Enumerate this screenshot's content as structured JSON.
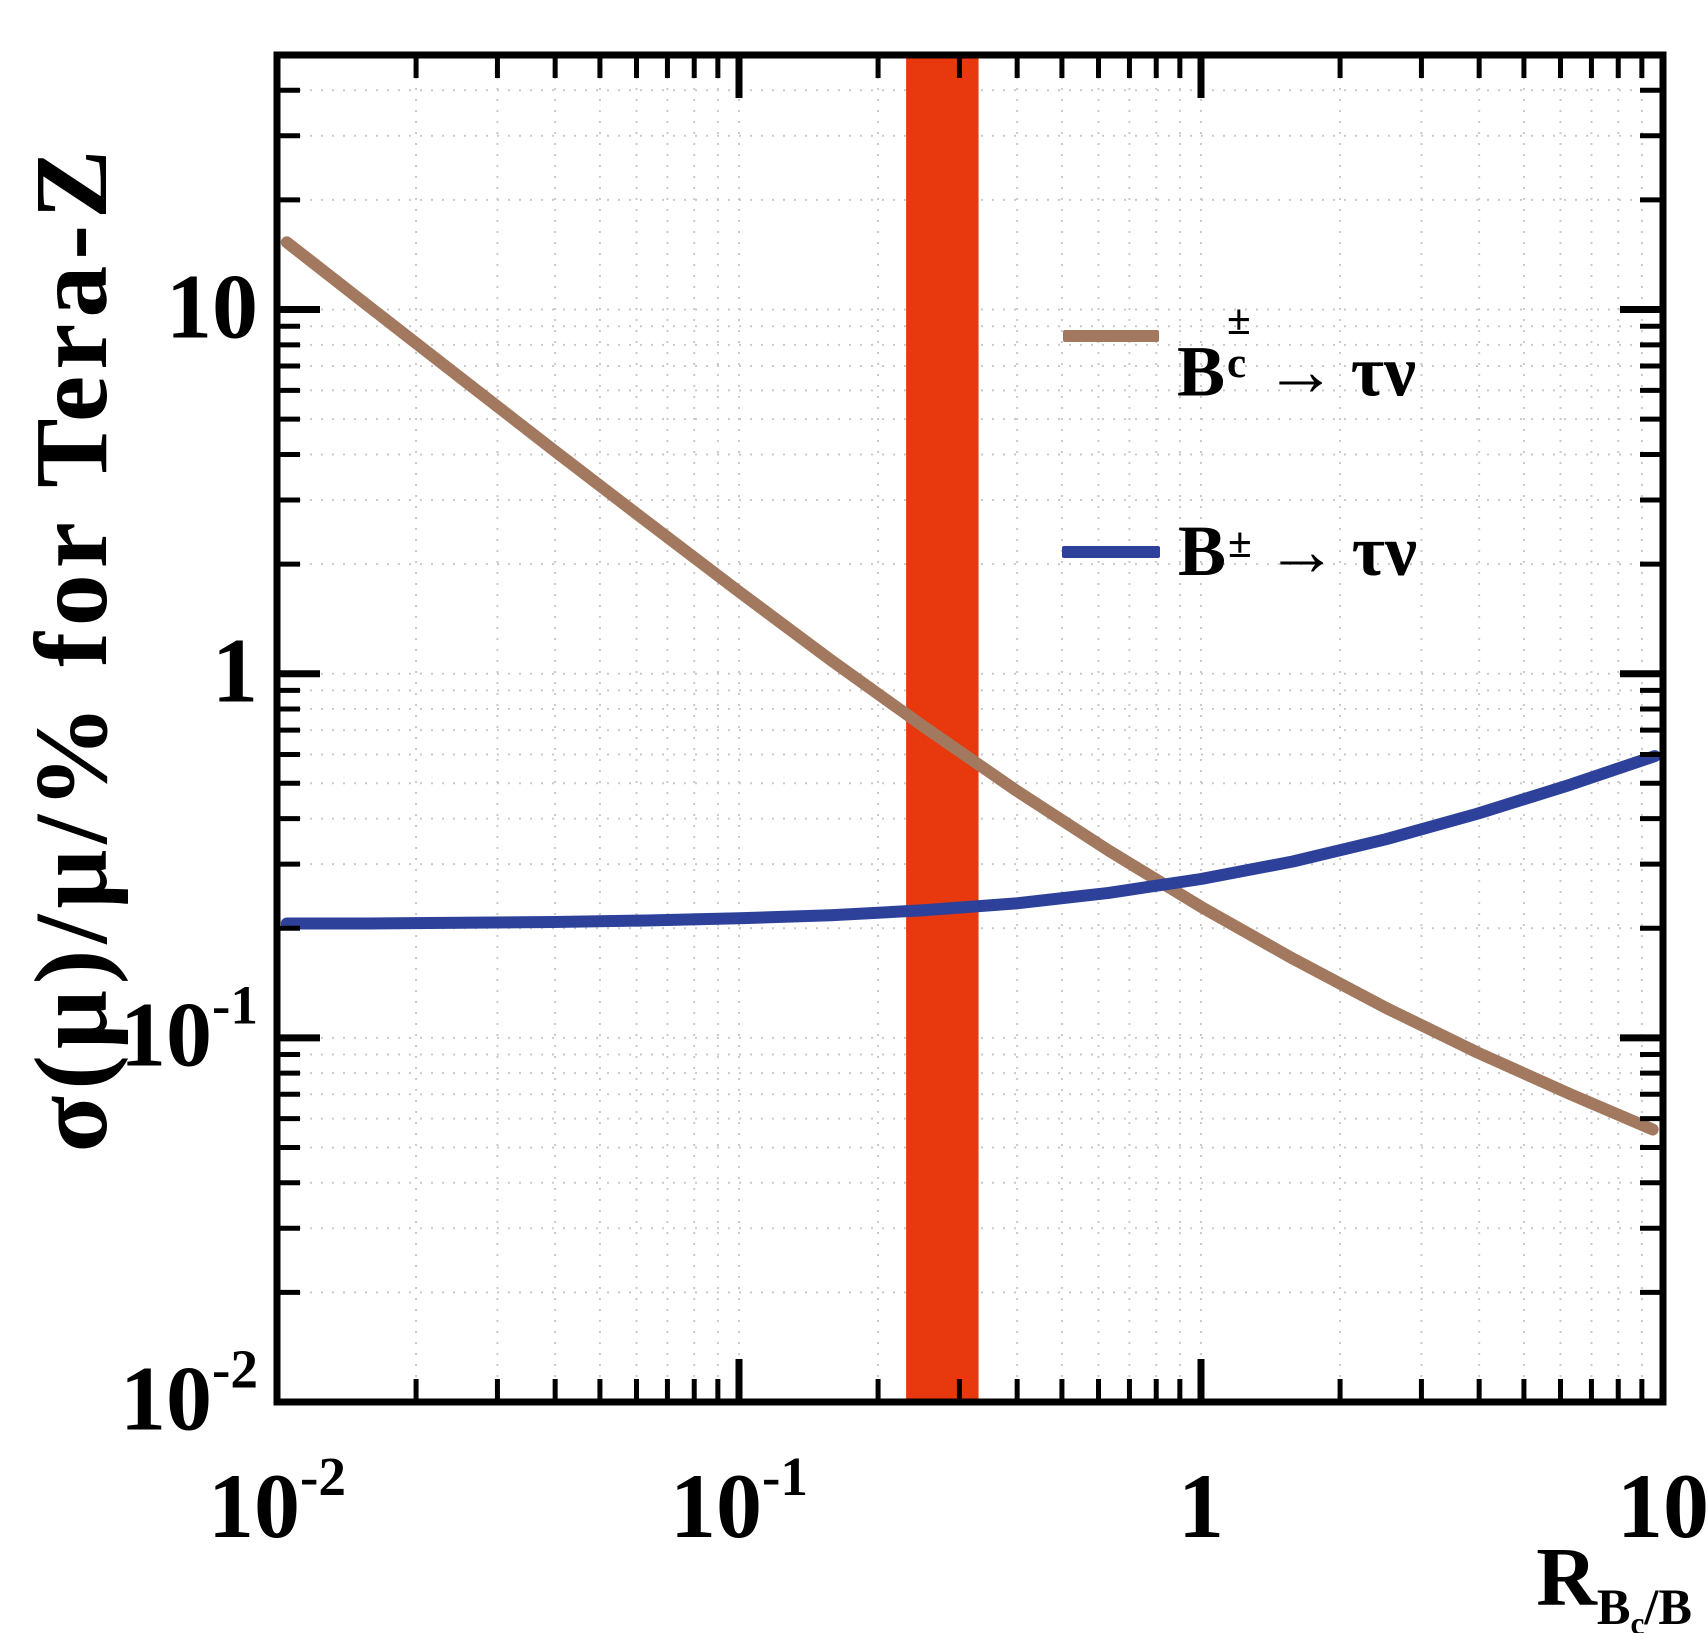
{
  "figure": {
    "background": "#ffffff",
    "frame_color": "#000000",
    "grid_color": "#c9c9c9",
    "text_color": "#000000"
  },
  "chart_data": {
    "type": "line",
    "title": "",
    "ylabel": "σ(μ)/μ/% for Tera-Z",
    "xlabel": {
      "main": "R",
      "sub": "B",
      "subsub": "c",
      "subpost": "/B"
    },
    "axes": {
      "x": {
        "scale": "log",
        "min": 0.01,
        "max": 10,
        "ticks": [
          {
            "value": 0.01,
            "base": "10",
            "exp": "-2"
          },
          {
            "value": 0.1,
            "base": "10",
            "exp": "-1"
          },
          {
            "value": 1,
            "base": "1",
            "exp": ""
          },
          {
            "value": 10,
            "base": "10",
            "exp": ""
          }
        ]
      },
      "y": {
        "scale": "log",
        "min": 0.01,
        "max": 50,
        "ticks": [
          {
            "value": 0.01,
            "base": "10",
            "exp": "-2"
          },
          {
            "value": 0.1,
            "base": "10",
            "exp": "-1"
          },
          {
            "value": 1,
            "base": "1",
            "exp": ""
          },
          {
            "value": 10,
            "base": "10",
            "exp": ""
          }
        ]
      }
    },
    "grid": {
      "on": true,
      "style": "dotted",
      "at": "all-log-ticks"
    },
    "band": {
      "x_min": 0.23,
      "x_max": 0.33,
      "color": "#e8380d"
    },
    "series": [
      {
        "name": "Bc-to-taunu",
        "color": "#a2795f",
        "line_width": 12,
        "x": [
          0.0105,
          0.0158,
          0.0251,
          0.0398,
          0.0631,
          0.1,
          0.158,
          0.251,
          0.398,
          0.631,
          1.0,
          1.58,
          2.51,
          3.98,
          6.31,
          9.5
        ],
        "y": [
          15.3,
          10.2,
          6.46,
          4.1,
          2.62,
          1.68,
          1.09,
          0.716,
          0.478,
          0.327,
          0.229,
          0.165,
          0.121,
          0.091,
          0.07,
          0.056
        ]
      },
      {
        "name": "B-to-taunu",
        "color": "#2d419b",
        "line_width": 12,
        "x": [
          0.0105,
          0.0158,
          0.0251,
          0.0398,
          0.0631,
          0.1,
          0.158,
          0.251,
          0.398,
          0.631,
          1.0,
          1.58,
          2.51,
          3.98,
          6.31,
          9.6
        ],
        "y": [
          0.206,
          0.206,
          0.207,
          0.208,
          0.21,
          0.213,
          0.217,
          0.224,
          0.234,
          0.25,
          0.273,
          0.305,
          0.351,
          0.413,
          0.496,
          0.594
        ]
      }
    ],
    "legend_position": "upper-right-inside"
  },
  "legend": {
    "entries": [
      {
        "pre": "B",
        "sup": "±",
        "sub": "c",
        "arrow": "→",
        "post": "τν",
        "color": "#a2795f"
      },
      {
        "pre": "B",
        "sup": "±",
        "sub": "",
        "arrow": "→",
        "post": "τν",
        "color": "#2d419b"
      }
    ]
  }
}
